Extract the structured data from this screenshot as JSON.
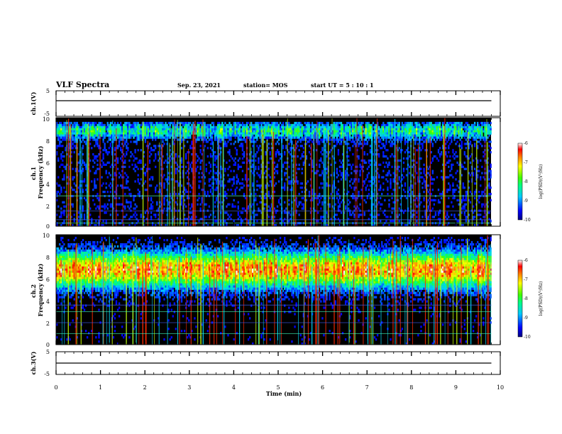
{
  "header": {
    "title": "VLF Spectra",
    "date": "Sep. 23, 2021",
    "station": "station= MOS",
    "start": "start  UT =   5 : 10 : 1"
  },
  "chart_data": [
    {
      "type": "line",
      "panel": "waveform",
      "ylabel": "ch.1(V)",
      "y_ticks": [
        "5",
        "-5"
      ],
      "ylim": [
        -5,
        5
      ],
      "xlim": [
        0,
        10
      ],
      "trace_level": 0
    },
    {
      "type": "heatmap",
      "panel": "spectrogram",
      "ylabel": "ch.1\nFrequency (kHz)",
      "y_ticks": [
        "0",
        "2",
        "4",
        "6",
        "8",
        "10"
      ],
      "ylim": [
        0,
        10
      ],
      "xlim": [
        0,
        10
      ],
      "data_end_min": 9.8,
      "colorbar": {
        "label": "log(PSD)(V²/Hz)",
        "ticks": [
          "-6",
          "-7",
          "-8",
          "-9",
          "-10"
        ],
        "range": [
          -10,
          -6
        ]
      }
    },
    {
      "type": "heatmap",
      "panel": "spectrogram",
      "ylabel": "ch.2\nFrequency (kHz)",
      "y_ticks": [
        "0",
        "2",
        "4",
        "6",
        "8",
        "10"
      ],
      "ylim": [
        0,
        10
      ],
      "xlim": [
        0,
        10
      ],
      "data_end_min": 9.8,
      "colorbar": {
        "label": "log(PSD)(V²/Hz)",
        "ticks": [
          "-6",
          "-7",
          "-8",
          "-9",
          "-10"
        ],
        "range": [
          -10,
          -6
        ]
      }
    },
    {
      "type": "line",
      "panel": "waveform",
      "ylabel": "ch.3(V)",
      "y_ticks": [
        "5",
        "-5"
      ],
      "ylim": [
        -5,
        5
      ],
      "xlim": [
        0,
        10
      ],
      "trace_level": 0,
      "xlabel": "Time  (min)",
      "x_ticks": [
        "0",
        "1",
        "2",
        "3",
        "4",
        "5",
        "6",
        "7",
        "8",
        "9",
        "10"
      ]
    }
  ]
}
